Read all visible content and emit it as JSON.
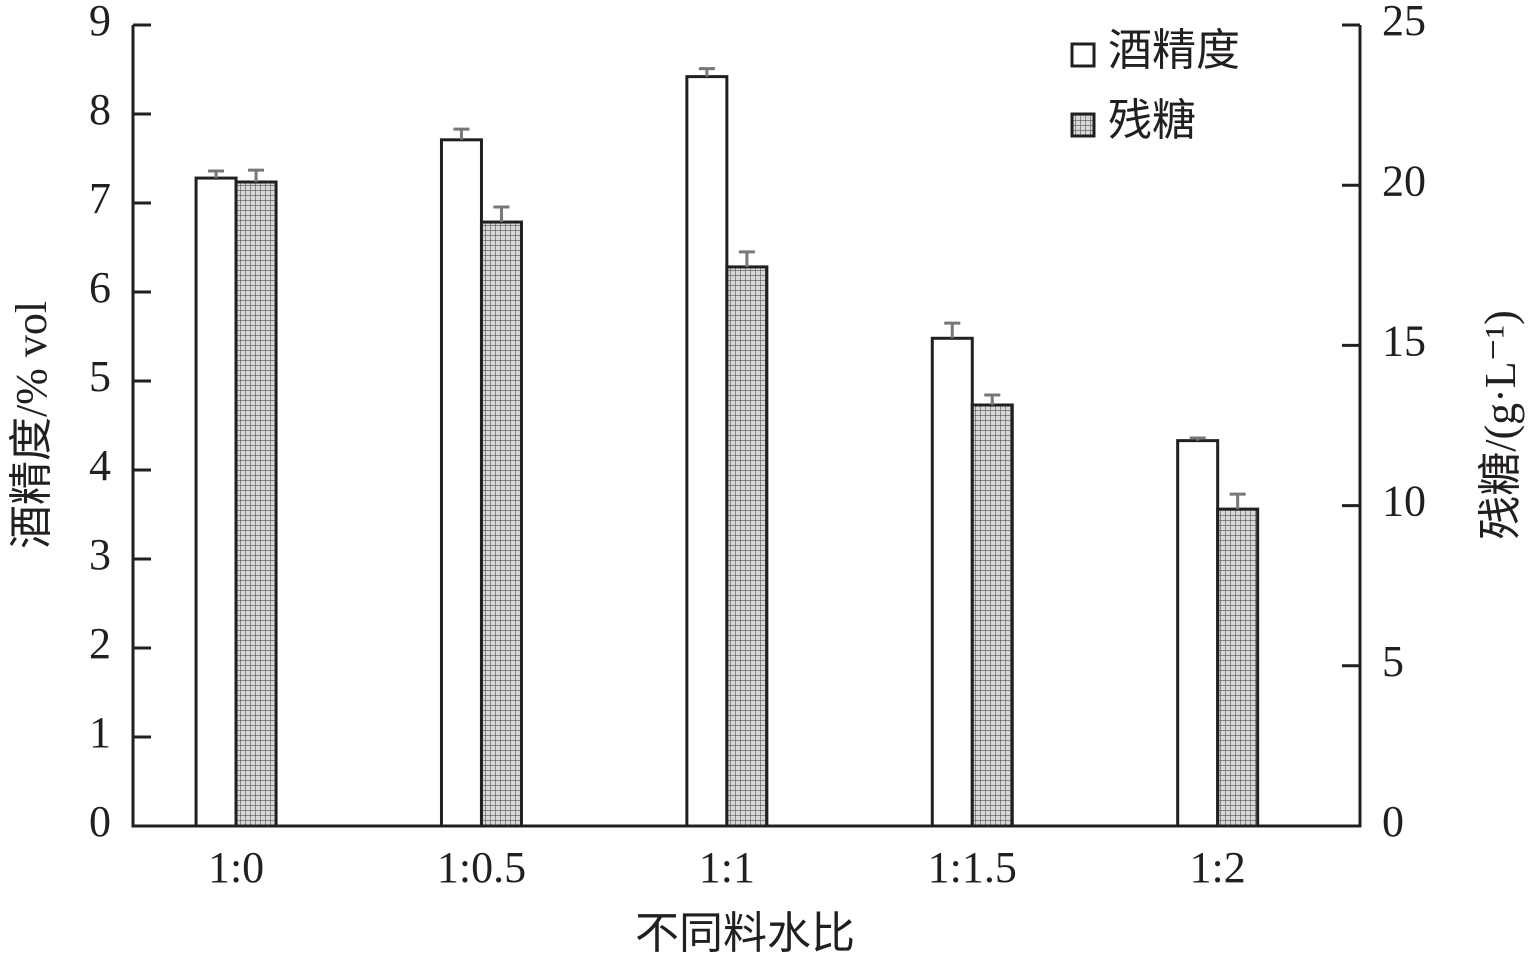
{
  "chart_data": {
    "type": "bar",
    "categories": [
      "1:0",
      "1:0.5",
      "1:1",
      "1:1.5",
      "1:2"
    ],
    "x_label": "不同料水比",
    "y_label": "酒精度/% vol",
    "y2_label": "残糖/(g·L⁻¹)",
    "series": [
      {
        "name": "酒精度",
        "color": "#ffffff",
        "values": [
          7.28,
          7.71,
          8.42,
          5.48,
          4.33
        ],
        "errors": [
          0.08,
          0.12,
          0.09,
          0.17,
          0.03
        ]
      },
      {
        "name": "残糖",
        "color": "#b0b0b0",
        "axis": "y2",
        "values": [
          20.1,
          18.85,
          17.45,
          13.14,
          9.89
        ],
        "errors": [
          0.37,
          0.47,
          0.47,
          0.31,
          0.47
        ]
      }
    ],
    "ylim": [
      0,
      9
    ],
    "yticks": [
      0,
      1,
      2,
      3,
      4,
      5,
      6,
      7,
      8,
      9
    ],
    "y2lim": [
      0,
      25
    ],
    "y2ticks": [
      0,
      5,
      10,
      15,
      20,
      25
    ],
    "legend": "top-right"
  }
}
